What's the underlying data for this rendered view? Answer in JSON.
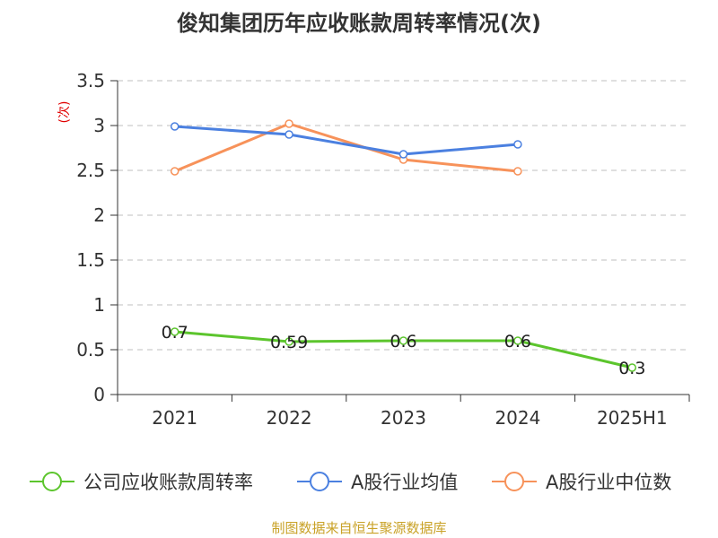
{
  "chart_data": {
    "type": "line",
    "title": "俊知集团历年应收账款周转率情况(次)",
    "ylabel": "(次)",
    "xlabel": "",
    "categories": [
      "2021",
      "2022",
      "2023",
      "2024",
      "2025H1"
    ],
    "ylim": [
      0,
      3.5
    ],
    "yticks": [
      "0",
      "0.5",
      "1",
      "1.5",
      "2",
      "2.5",
      "3",
      "3.5"
    ],
    "grid": true,
    "legend_position": "bottom",
    "series": [
      {
        "name": "公司应收账款周转率",
        "values": [
          0.7,
          0.59,
          0.6,
          0.6,
          0.3
        ],
        "labels": [
          "0.7",
          "0.59",
          "0.6",
          "0.6",
          "0.3"
        ],
        "color": "#5cc52d"
      },
      {
        "name": "A股行业均值",
        "values": [
          2.99,
          2.9,
          2.68,
          2.79,
          null
        ],
        "color": "#4b80e0"
      },
      {
        "name": "A股行业中位数",
        "values": [
          2.49,
          3.02,
          2.62,
          2.49,
          null
        ],
        "color": "#f7925a"
      }
    ],
    "source": "制图数据来自恒生聚源数据库",
    "colors": {
      "axis": "#333333",
      "grid": "#cccccc",
      "ylabel": "#e00000",
      "source": "#c9a227"
    }
  }
}
